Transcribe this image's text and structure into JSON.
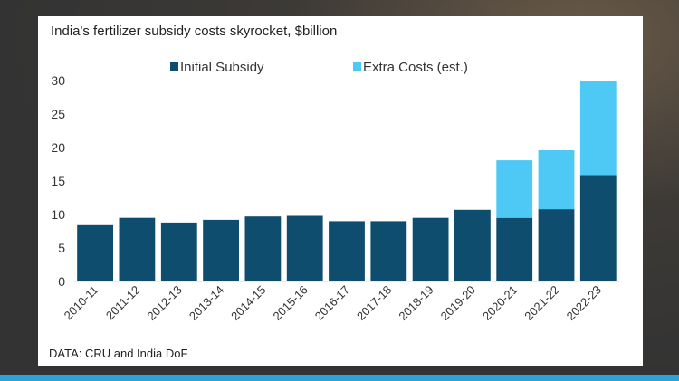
{
  "chart_data": {
    "type": "bar",
    "stacked": true,
    "title": "India's fertilizer subsidy costs skyrocket, $billion",
    "xlabel": "",
    "ylabel": "",
    "ylim": [
      0,
      30
    ],
    "yticks": [
      0,
      5,
      10,
      15,
      20,
      25,
      30
    ],
    "grid": false,
    "legend_position": "top",
    "categories": [
      "2010-11",
      "2011-12",
      "2012-13",
      "2013-14",
      "2014-15",
      "2015-16",
      "2016-17",
      "2017-18",
      "2018-19",
      "2019-20",
      "2020-21",
      "2021-22",
      "2022-23"
    ],
    "series": [
      {
        "name": "Initial Subsidy",
        "color": "#0e4d6e",
        "values": [
          8.4,
          9.5,
          8.8,
          9.2,
          9.7,
          9.8,
          9.0,
          9.0,
          9.5,
          10.7,
          9.5,
          10.8,
          15.9
        ]
      },
      {
        "name": "Extra Costs (est.)",
        "color": "#4ec9f5",
        "values": [
          0,
          0,
          0,
          0,
          0,
          0,
          0,
          0,
          0,
          0,
          8.6,
          8.8,
          14.1
        ]
      }
    ],
    "source": "DATA: CRU and India DoF"
  }
}
